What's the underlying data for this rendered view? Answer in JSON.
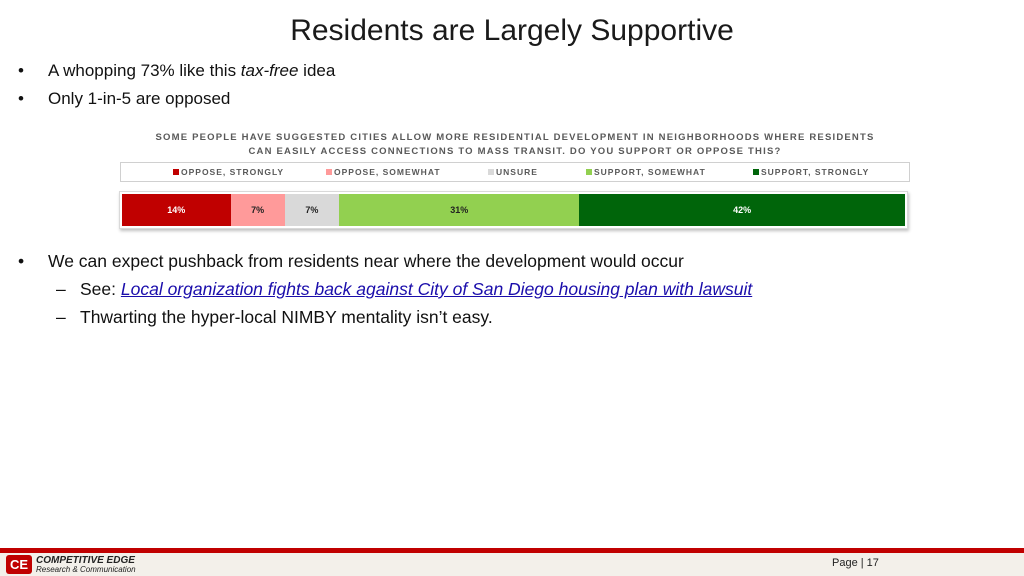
{
  "slide": {
    "title": "Residents are Largely Supportive",
    "bullets_top": [
      {
        "pre": "A whopping 73% like this ",
        "em": "tax-free",
        "post": " idea"
      },
      {
        "pre": "Only 1-in-5 are opposed",
        "em": "",
        "post": ""
      }
    ],
    "bullets_bottom": {
      "main": "We can expect pushback from residents near where the development would occur",
      "sub1_prefix": "See: ",
      "sub1_link": "Local organization fights back against City of San Diego housing plan with lawsuit",
      "sub2": "Thwarting the hyper-local NIMBY mentality isn’t easy."
    }
  },
  "chart_data": {
    "type": "bar",
    "stacked": true,
    "orientation": "horizontal",
    "title_line1": "SOME PEOPLE HAVE SUGGESTED CITIES ALLOW MORE RESIDENTIAL DEVELOPMENT IN NEIGHBORHOODS WHERE RESIDENTS",
    "title_line2": "CAN EASILY ACCESS CONNECTIONS TO MASS TRANSIT. DO YOU SUPPORT OR OPPOSE THIS?",
    "legend_position": "top",
    "series": [
      {
        "name": "OPPOSE, STRONGLY",
        "value": 14,
        "label": "14%",
        "color": "#c00000",
        "text_color": "#ffffff"
      },
      {
        "name": "OPPOSE, SOMEWHAT",
        "value": 7,
        "label": "7%",
        "color": "#ff9a9a",
        "text_color": "#222222"
      },
      {
        "name": "UNSURE",
        "value": 7,
        "label": "7%",
        "color": "#d9d9d9",
        "text_color": "#222222"
      },
      {
        "name": "SUPPORT, SOMEWHAT",
        "value": 31,
        "label": "31%",
        "color": "#92d050",
        "text_color": "#222222"
      },
      {
        "name": "SUPPORT, STRONGLY",
        "value": 42,
        "label": "42%",
        "color": "#00650a",
        "text_color": "#ffffff"
      }
    ]
  },
  "footer": {
    "logo_mark": "CE",
    "logo_name": "COMPETITIVE EDGE",
    "logo_tagline": "Research & Communication",
    "page_label": "Page | 17"
  }
}
